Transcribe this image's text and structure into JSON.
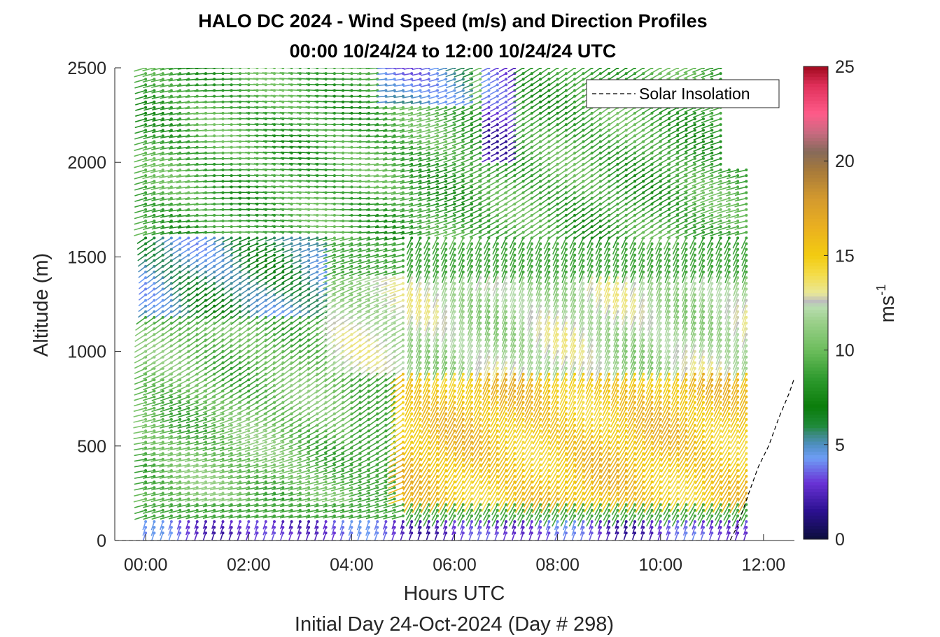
{
  "chart_data": {
    "type": "quiver",
    "title_line1": "HALO DC 2024 - Wind Speed (m/s) and Direction Profiles",
    "title_line2": "00:00 10/24/24 to 12:00 10/24/24  UTC",
    "xlabel": "Hours UTC",
    "xlabel2": "Initial Day 24-Oct-2024 (Day # 298)",
    "ylabel": "Altitude (m)",
    "colorbar_label": "ms",
    "colorbar_label_exp": "-1",
    "x_ticks": [
      "00:00",
      "02:00",
      "04:00",
      "06:00",
      "08:00",
      "10:00",
      "12:00"
    ],
    "x_tick_hours": [
      0,
      2,
      4,
      6,
      8,
      10,
      12
    ],
    "xlim_hours": [
      -0.6,
      12.6
    ],
    "y_ticks": [
      "0",
      "500",
      "1000",
      "1500",
      "2000",
      "2500"
    ],
    "y_tick_values": [
      0,
      500,
      1000,
      1500,
      2000,
      2500
    ],
    "ylim": [
      0,
      2500
    ],
    "colorbar_ticks": [
      "0",
      "5",
      "10",
      "15",
      "20",
      "25"
    ],
    "colorbar_tick_values": [
      0,
      5,
      10,
      15,
      20,
      25
    ],
    "clim": [
      0,
      25
    ],
    "legend": {
      "entries": [
        "Solar Insolation"
      ],
      "location": "top-right"
    },
    "solar_insolation": {
      "hours": [
        -0.6,
        11.35,
        11.5,
        11.7,
        11.9,
        12.1,
        12.3,
        12.5,
        12.6
      ],
      "altitude_m": [
        0,
        0,
        80,
        240,
        390,
        500,
        650,
        780,
        860
      ]
    },
    "time_range_hours": [
      0,
      11.8
    ],
    "profile_interval_minutes": 10,
    "altitude_step_m": 30,
    "speed_regimes": [
      {
        "hours": [
          0,
          11.8
        ],
        "altitude_m": [
          0,
          120
        ],
        "speed_ms": 3,
        "note": "near-surface winds"
      },
      {
        "hours": [
          0,
          3.5
        ],
        "altitude_m": [
          1200,
          1600
        ],
        "speed_ms": 5.5
      },
      {
        "hours": [
          6.6,
          7.2
        ],
        "altitude_m": [
          2000,
          2500
        ],
        "speed_ms": 3
      },
      {
        "hours": [
          4.5,
          6.5
        ],
        "altitude_m": [
          2300,
          2500
        ],
        "speed_ms": 4.5
      },
      {
        "hours": [
          5,
          11.8
        ],
        "altitude_m": [
          200,
          900
        ],
        "speed_ms": 15.5
      },
      {
        "hours": [
          3.5,
          11.8
        ],
        "altitude_m": [
          900,
          1400
        ],
        "speed_ms": 12
      },
      {
        "hours": [
          0,
          4
        ],
        "altitude_m": [
          200,
          1150
        ],
        "speed_ms": 10
      },
      {
        "hours": [
          0,
          11.8
        ],
        "altitude_m": [
          1600,
          2500
        ],
        "speed_ms": 9
      }
    ],
    "colormap": [
      [
        0,
        "#0b0e3c"
      ],
      [
        1.5,
        "#2b1090"
      ],
      [
        3,
        "#6a33d6"
      ],
      [
        4.3,
        "#6e9df5"
      ],
      [
        5,
        "#4f8fc2"
      ],
      [
        5.6,
        "#3a8a7a"
      ],
      [
        6,
        "#1f8a3a"
      ],
      [
        7,
        "#0b7d0b"
      ],
      [
        8.5,
        "#2e9a2e"
      ],
      [
        10,
        "#6cbd5c"
      ],
      [
        11.5,
        "#9bd08a"
      ],
      [
        12.3,
        "#b8ddb0"
      ],
      [
        12.6,
        "#bdbdbd"
      ],
      [
        13,
        "#e8e89a"
      ],
      [
        14,
        "#f4dc4a"
      ],
      [
        15,
        "#f2cc10"
      ],
      [
        16.5,
        "#eab020"
      ],
      [
        18,
        "#d49a2e"
      ],
      [
        19.5,
        "#a77a3a"
      ],
      [
        20.5,
        "#866a5a"
      ],
      [
        21.5,
        "#c86a80"
      ],
      [
        22.5,
        "#ff5c8a"
      ],
      [
        24,
        "#e0305a"
      ],
      [
        25,
        "#a00a1e"
      ]
    ]
  }
}
